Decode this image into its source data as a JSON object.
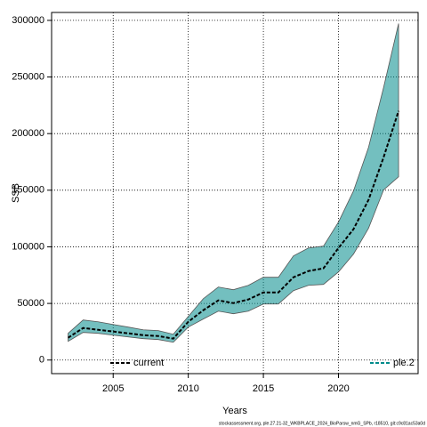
{
  "chart_data": {
    "type": "line",
    "x_label": "Years",
    "y_label": "SSB",
    "footer": "stockassessment.org, ple.27.21-32_WKBPLACE_2024_BioParsw_nmG_SPb, r18510, git:c9c81ac53a0d",
    "x": [
      2002,
      2003,
      2004,
      2005,
      2006,
      2007,
      2008,
      2009,
      2010,
      2011,
      2012,
      2013,
      2014,
      2015,
      2016,
      2017,
      2018,
      2019,
      2020,
      2021,
      2022,
      2023,
      2024
    ],
    "series": [
      {
        "name": "current",
        "color": "#000000",
        "values": [
          19700,
          28300,
          26700,
          25200,
          23600,
          22000,
          21200,
          18900,
          33800,
          44000,
          52700,
          50300,
          53500,
          59700,
          59700,
          73100,
          78600,
          81000,
          99000,
          115600,
          141500,
          179000,
          220000
        ]
      },
      {
        "name": "ple.2",
        "color": "#008b8b",
        "lower": [
          16500,
          24400,
          23600,
          22000,
          20400,
          18900,
          18100,
          15700,
          29100,
          36200,
          43200,
          40900,
          43200,
          49500,
          49500,
          61300,
          66000,
          66800,
          77800,
          93600,
          116400,
          150200,
          161900
        ],
        "upper": [
          23600,
          35400,
          33800,
          31400,
          29100,
          26700,
          26000,
          22800,
          38500,
          54200,
          64500,
          62100,
          66000,
          73100,
          73100,
          92000,
          99000,
          100600,
          121900,
          149400,
          187900,
          240600,
          297200
        ]
      }
    ],
    "xlim": [
      2000.9,
      2025.3
    ],
    "ylim": [
      -12000,
      307000
    ],
    "xticks": [
      2005,
      2010,
      2015,
      2020
    ],
    "yticks": [
      0,
      50000,
      100000,
      150000,
      200000,
      250000,
      300000
    ],
    "grid": true
  }
}
